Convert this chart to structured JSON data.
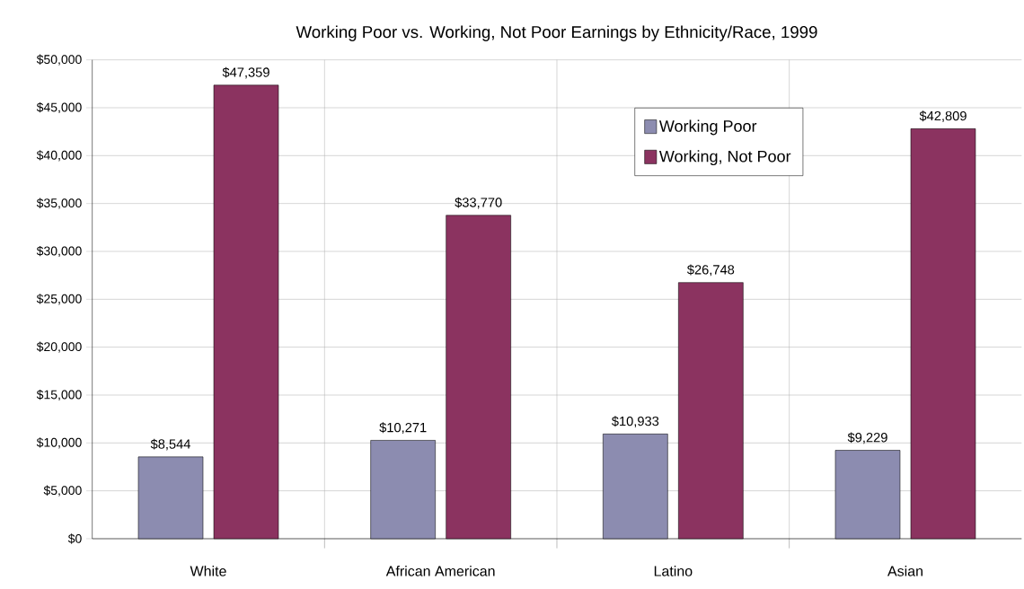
{
  "chart_data": {
    "type": "bar",
    "title": "Working Poor vs. Working, Not Poor Earnings by Ethnicity/Race, 1999",
    "categories": [
      "White",
      "African American",
      "Latino",
      "Asian"
    ],
    "series": [
      {
        "name": "Working Poor",
        "color": "#8c8cb0",
        "values": [
          8544,
          10271,
          10933,
          9229
        ],
        "value_labels": [
          "$8,544",
          "$10,271",
          "$10,933",
          "$9,229"
        ]
      },
      {
        "name": "Working, Not Poor",
        "color": "#8b3360",
        "values": [
          47359,
          33770,
          26748,
          42809
        ],
        "value_labels": [
          "$47,359",
          "$33,770",
          "$26,748",
          "$42,809"
        ]
      }
    ],
    "ylim": [
      0,
      50000
    ],
    "yticks": [
      {
        "value": 0,
        "label": "$0"
      },
      {
        "value": 5000,
        "label": "$5,000"
      },
      {
        "value": 10000,
        "label": "$10,000"
      },
      {
        "value": 15000,
        "label": "$15,000"
      },
      {
        "value": 20000,
        "label": "$20,000"
      },
      {
        "value": 25000,
        "label": "$25,000"
      },
      {
        "value": 30000,
        "label": "$30,000"
      },
      {
        "value": 35000,
        "label": "$35,000"
      },
      {
        "value": 40000,
        "label": "$40,000"
      },
      {
        "value": 45000,
        "label": "$45,000"
      },
      {
        "value": 50000,
        "label": "$50,000"
      }
    ],
    "grid": true,
    "legend": "top right"
  }
}
